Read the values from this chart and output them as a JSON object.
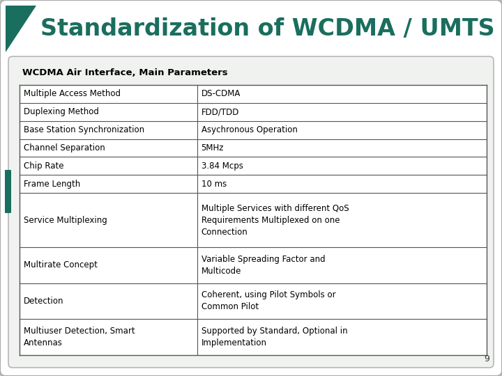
{
  "title": "Standardization of WCDMA / UMTS",
  "title_color": "#1a6e5e",
  "subtitle": "WCDMA Air Interface, Main Parameters",
  "outer_bg": "#c8c8c8",
  "slide_bg": "#ffffff",
  "content_bg": "#f0f0f0",
  "table_rows": [
    [
      "Multiple Access Method",
      "DS-CDMA"
    ],
    [
      "Duplexing Method",
      "FDD/TDD"
    ],
    [
      "Base Station Synchronization",
      "Asychronous Operation"
    ],
    [
      "Channel Separation",
      "5MHz"
    ],
    [
      "Chip Rate",
      "3.84 Mcps"
    ],
    [
      "Frame Length",
      "10 ms"
    ],
    [
      "Service Multiplexing",
      "Multiple Services with different QoS\nRequirements Multiplexed on one\nConnection"
    ],
    [
      "Multirate Concept",
      "Variable Spreading Factor and\nMulticode"
    ],
    [
      "Detection",
      "Coherent, using Pilot Symbols or\nCommon Pilot"
    ],
    [
      "Multiuser Detection, Smart\nAntennas",
      "Supported by Standard, Optional in\nImplementation"
    ]
  ],
  "row_line_counts": [
    1,
    1,
    1,
    1,
    1,
    1,
    3,
    2,
    2,
    2
  ],
  "page_number": "9",
  "teal_color": "#1a6e5e"
}
